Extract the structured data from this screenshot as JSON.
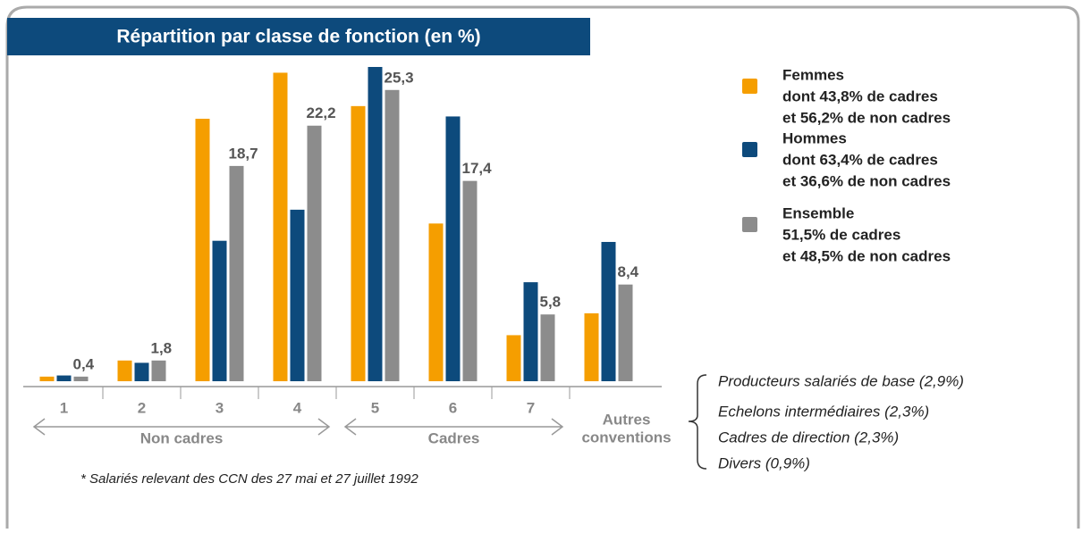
{
  "chart_data": {
    "type": "bar",
    "title": "Répartition par classe de fonction (en %)",
    "categories": [
      "1",
      "2",
      "3",
      "4",
      "5",
      "6",
      "7",
      [
        "Autres",
        "conventions"
      ]
    ],
    "series": [
      {
        "name": "Femmes",
        "color": "#f59e00",
        "details": [
          "dont 43,8% de cadres",
          "et 56,2% de non cadres"
        ],
        "values": [
          0.4,
          1.8,
          22.8,
          26.8,
          23.9,
          13.7,
          4.0,
          5.9
        ]
      },
      {
        "name": "Hommes",
        "color": "#0d4a7c",
        "details": [
          "dont 63,4% de cadres",
          "et 36,6% de non cadres"
        ],
        "values": [
          0.5,
          1.6,
          12.2,
          14.9,
          27.3,
          23.0,
          8.6,
          12.1
        ]
      },
      {
        "name": "Ensemble",
        "color": "#8c8c8c",
        "details": [
          "51,5% de cadres",
          "et 48,5% de non cadres"
        ],
        "values": [
          0.4,
          1.8,
          18.7,
          22.2,
          25.3,
          17.4,
          5.8,
          8.4
        ],
        "value_labels": [
          "0,4",
          "1,8",
          "18,7",
          "22,2",
          "25,3",
          "17,4",
          "5,8",
          "8,4"
        ]
      }
    ],
    "groups": [
      {
        "label": "Non cadres",
        "from": 0,
        "to": 3
      },
      {
        "label": "Cadres",
        "from": 4,
        "to": 6
      }
    ],
    "notes": [
      "Producteurs salariés de base (2,9%)",
      "Echelons intermédiaires (2,3%)",
      "Cadres de direction (2,3%)",
      "Divers (0,9%)"
    ],
    "footnote": "* Salariés relevant des CCN des 27 mai et 27 juillet 1992"
  }
}
